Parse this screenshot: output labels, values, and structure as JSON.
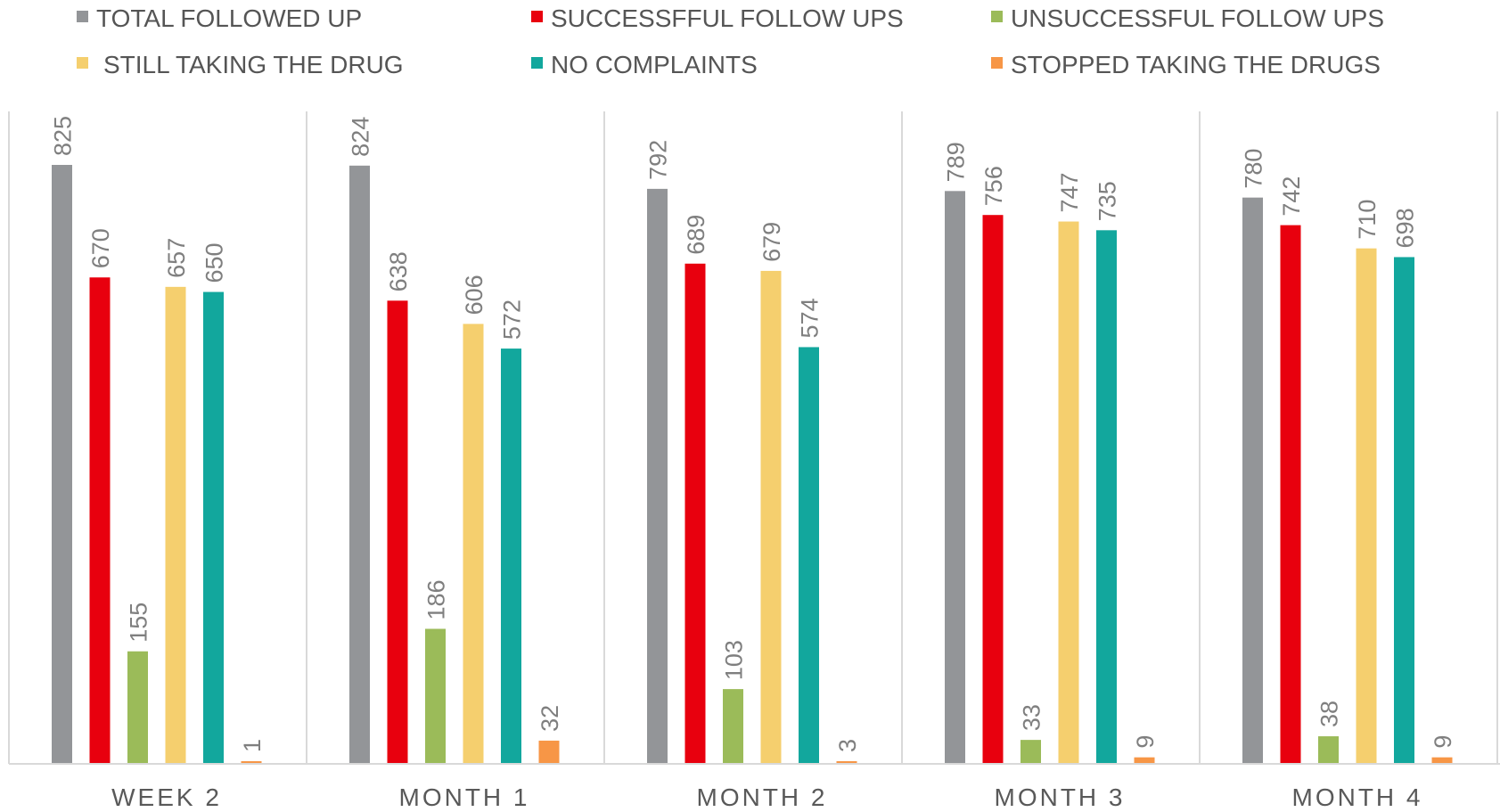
{
  "chart_data": {
    "type": "bar",
    "title": "",
    "xlabel": "",
    "ylabel": "",
    "ylim": [
      0,
      880
    ],
    "grid": false,
    "legend_position": "top",
    "categories": [
      "WEEK 2",
      "MONTH 1",
      "MONTH 2",
      "MONTH 3",
      "MONTH 4"
    ],
    "series": [
      {
        "name": "TOTAL FOLLOWED UP",
        "color": "#939598",
        "values": [
          825,
          824,
          792,
          789,
          780
        ]
      },
      {
        "name": "SUCCESSFFUL FOLLOW UPS",
        "color": "#e8000e",
        "values": [
          670,
          638,
          689,
          756,
          742
        ]
      },
      {
        "name": "UNSUCCESSFUL FOLLOW UPS",
        "color": "#9bbb59",
        "values": [
          155,
          186,
          103,
          33,
          38
        ]
      },
      {
        "name": "STILL TAKING THE DRUG",
        "color": "#f5cf6e",
        "values": [
          657,
          606,
          679,
          747,
          710
        ]
      },
      {
        "name": "NO COMPLAINTS",
        "color": "#12a79d",
        "values": [
          650,
          572,
          574,
          735,
          698
        ]
      },
      {
        "name": "STOPPED TAKING THE DRUGS",
        "color": "#f79646",
        "values": [
          1,
          32,
          3,
          9,
          9
        ]
      }
    ]
  }
}
